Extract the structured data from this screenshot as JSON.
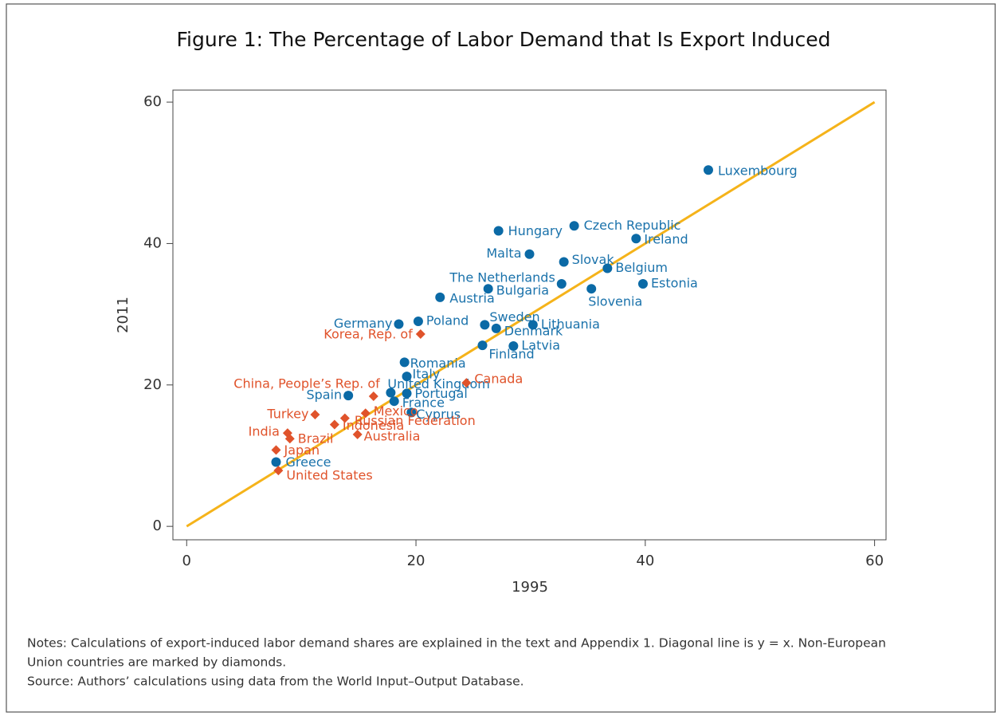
{
  "chart_data": {
    "type": "scatter",
    "title": "Figure 1: The Percentage of Labor Demand that Is Export Induced",
    "x_label": "1995",
    "y_label": "2011",
    "xlim": [
      -1.2,
      61
    ],
    "ylim": [
      -1.9,
      61.7
    ],
    "xticks": [
      0,
      20,
      40,
      60
    ],
    "yticks": [
      0,
      20,
      40,
      60
    ],
    "grid": false,
    "reference_line": {
      "x": [
        0,
        60
      ],
      "y": [
        0,
        60
      ],
      "color": "#f5b31a"
    },
    "series": [
      {
        "marker": "circle",
        "color": "#0b6aa6",
        "label_color": "#1a72ab",
        "labels": [
          "Luxembourg",
          "Hungary",
          "Czech Republic",
          "Ireland",
          "Malta",
          "Slovak",
          "Belgium",
          "The Netherlands",
          "Bulgaria",
          "Estonia",
          "Slovenia",
          "Austria",
          "Germany",
          "Poland",
          "Sweden",
          "Denmark",
          "Lithuania",
          "Finland",
          "Latvia",
          "Romania",
          "Italy",
          "United Kingdom",
          "Spain",
          "Portugal",
          "France",
          "Cyprus",
          "Greece"
        ],
        "x": [
          45.5,
          27.2,
          33.8,
          39.2,
          29.9,
          32.9,
          36.7,
          32.7,
          26.3,
          39.8,
          35.3,
          22.1,
          18.5,
          20.2,
          26.0,
          27.0,
          30.2,
          25.8,
          28.5,
          19.0,
          19.2,
          17.8,
          14.1,
          19.2,
          18.1,
          19.6,
          7.8
        ],
        "values": [
          50.4,
          41.8,
          42.5,
          40.7,
          38.5,
          37.4,
          36.5,
          34.3,
          33.6,
          34.3,
          33.6,
          32.4,
          28.6,
          29.0,
          28.5,
          28.0,
          28.5,
          25.6,
          25.5,
          23.2,
          21.2,
          18.9,
          18.5,
          18.8,
          17.7,
          16.1,
          9.1
        ]
      },
      {
        "marker": "diamond",
        "color": "#e0532b",
        "label_color": "#e0532b",
        "labels": [
          "Korea, Rep. of",
          "China, People’s Rep. of",
          "Canada",
          "Turkey",
          "Mexico",
          "Russian Federation",
          "Indonesia",
          "Australia",
          "India",
          "Brazil",
          "Japan",
          "United States"
        ],
        "x": [
          20.4,
          16.3,
          24.4,
          11.2,
          15.6,
          13.8,
          12.9,
          14.9,
          8.8,
          9.0,
          7.8,
          8.0
        ],
        "values": [
          27.2,
          18.4,
          20.3,
          15.8,
          16.0,
          15.3,
          14.4,
          13.0,
          13.2,
          12.4,
          10.8,
          7.9
        ]
      }
    ],
    "notes": [
      "Notes: Calculations of export-induced labor demand shares are explained in the text and Appendix 1. Diagonal line is y = x. Non-European",
      "Union countries are marked by diamonds."
    ],
    "source": "Source: Authors’ calculations using data from the World Input–Output Database."
  }
}
